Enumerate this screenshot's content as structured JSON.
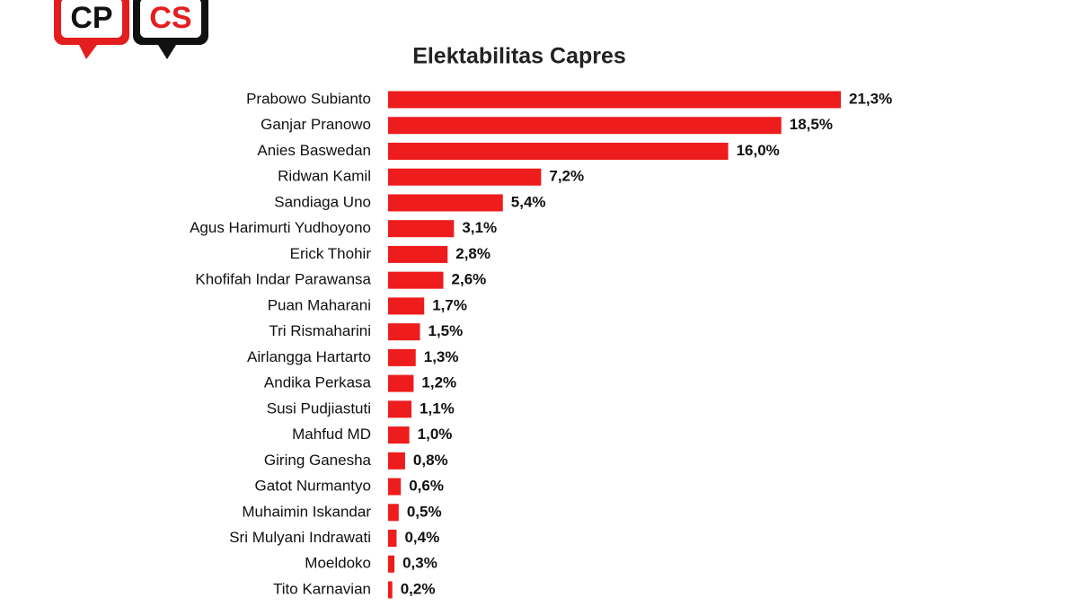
{
  "logo": {
    "left": "CP",
    "right": "CS"
  },
  "chart_data": {
    "type": "barh",
    "title": "Elektabilitas Capres",
    "color": "#ee1c1c",
    "categories": [
      "Prabowo Subianto",
      "Ganjar Pranowo",
      "Anies Baswedan",
      "Ridwan Kamil",
      "Sandiaga Uno",
      "Agus Harimurti Yudhoyono",
      "Erick Thohir",
      "Khofifah Indar Parawansa",
      "Puan Maharani",
      "Tri Rismaharini",
      "Airlangga Hartarto",
      "Andika Perkasa",
      "Susi Pudjiastuti",
      "Mahfud MD",
      "Giring Ganesha",
      "Gatot Nurmantyo",
      "Muhaimin Iskandar",
      "Sri Mulyani Indrawati",
      "Moeldoko",
      "Tito Karnavian"
    ],
    "values": [
      21.3,
      18.5,
      16.0,
      7.2,
      5.4,
      3.1,
      2.8,
      2.6,
      1.7,
      1.5,
      1.3,
      1.2,
      1.1,
      1.0,
      0.8,
      0.6,
      0.5,
      0.4,
      0.3,
      0.2
    ],
    "value_labels": [
      "21,3%",
      "18,5%",
      "16,0%",
      "7,2%",
      "5,4%",
      "3,1%",
      "2,8%",
      "2,6%",
      "1,7%",
      "1,5%",
      "1,3%",
      "1,2%",
      "1,1%",
      "1,0%",
      "0,8%",
      "0,6%",
      "0,5%",
      "0,4%",
      "0,3%",
      "0,2%"
    ]
  }
}
